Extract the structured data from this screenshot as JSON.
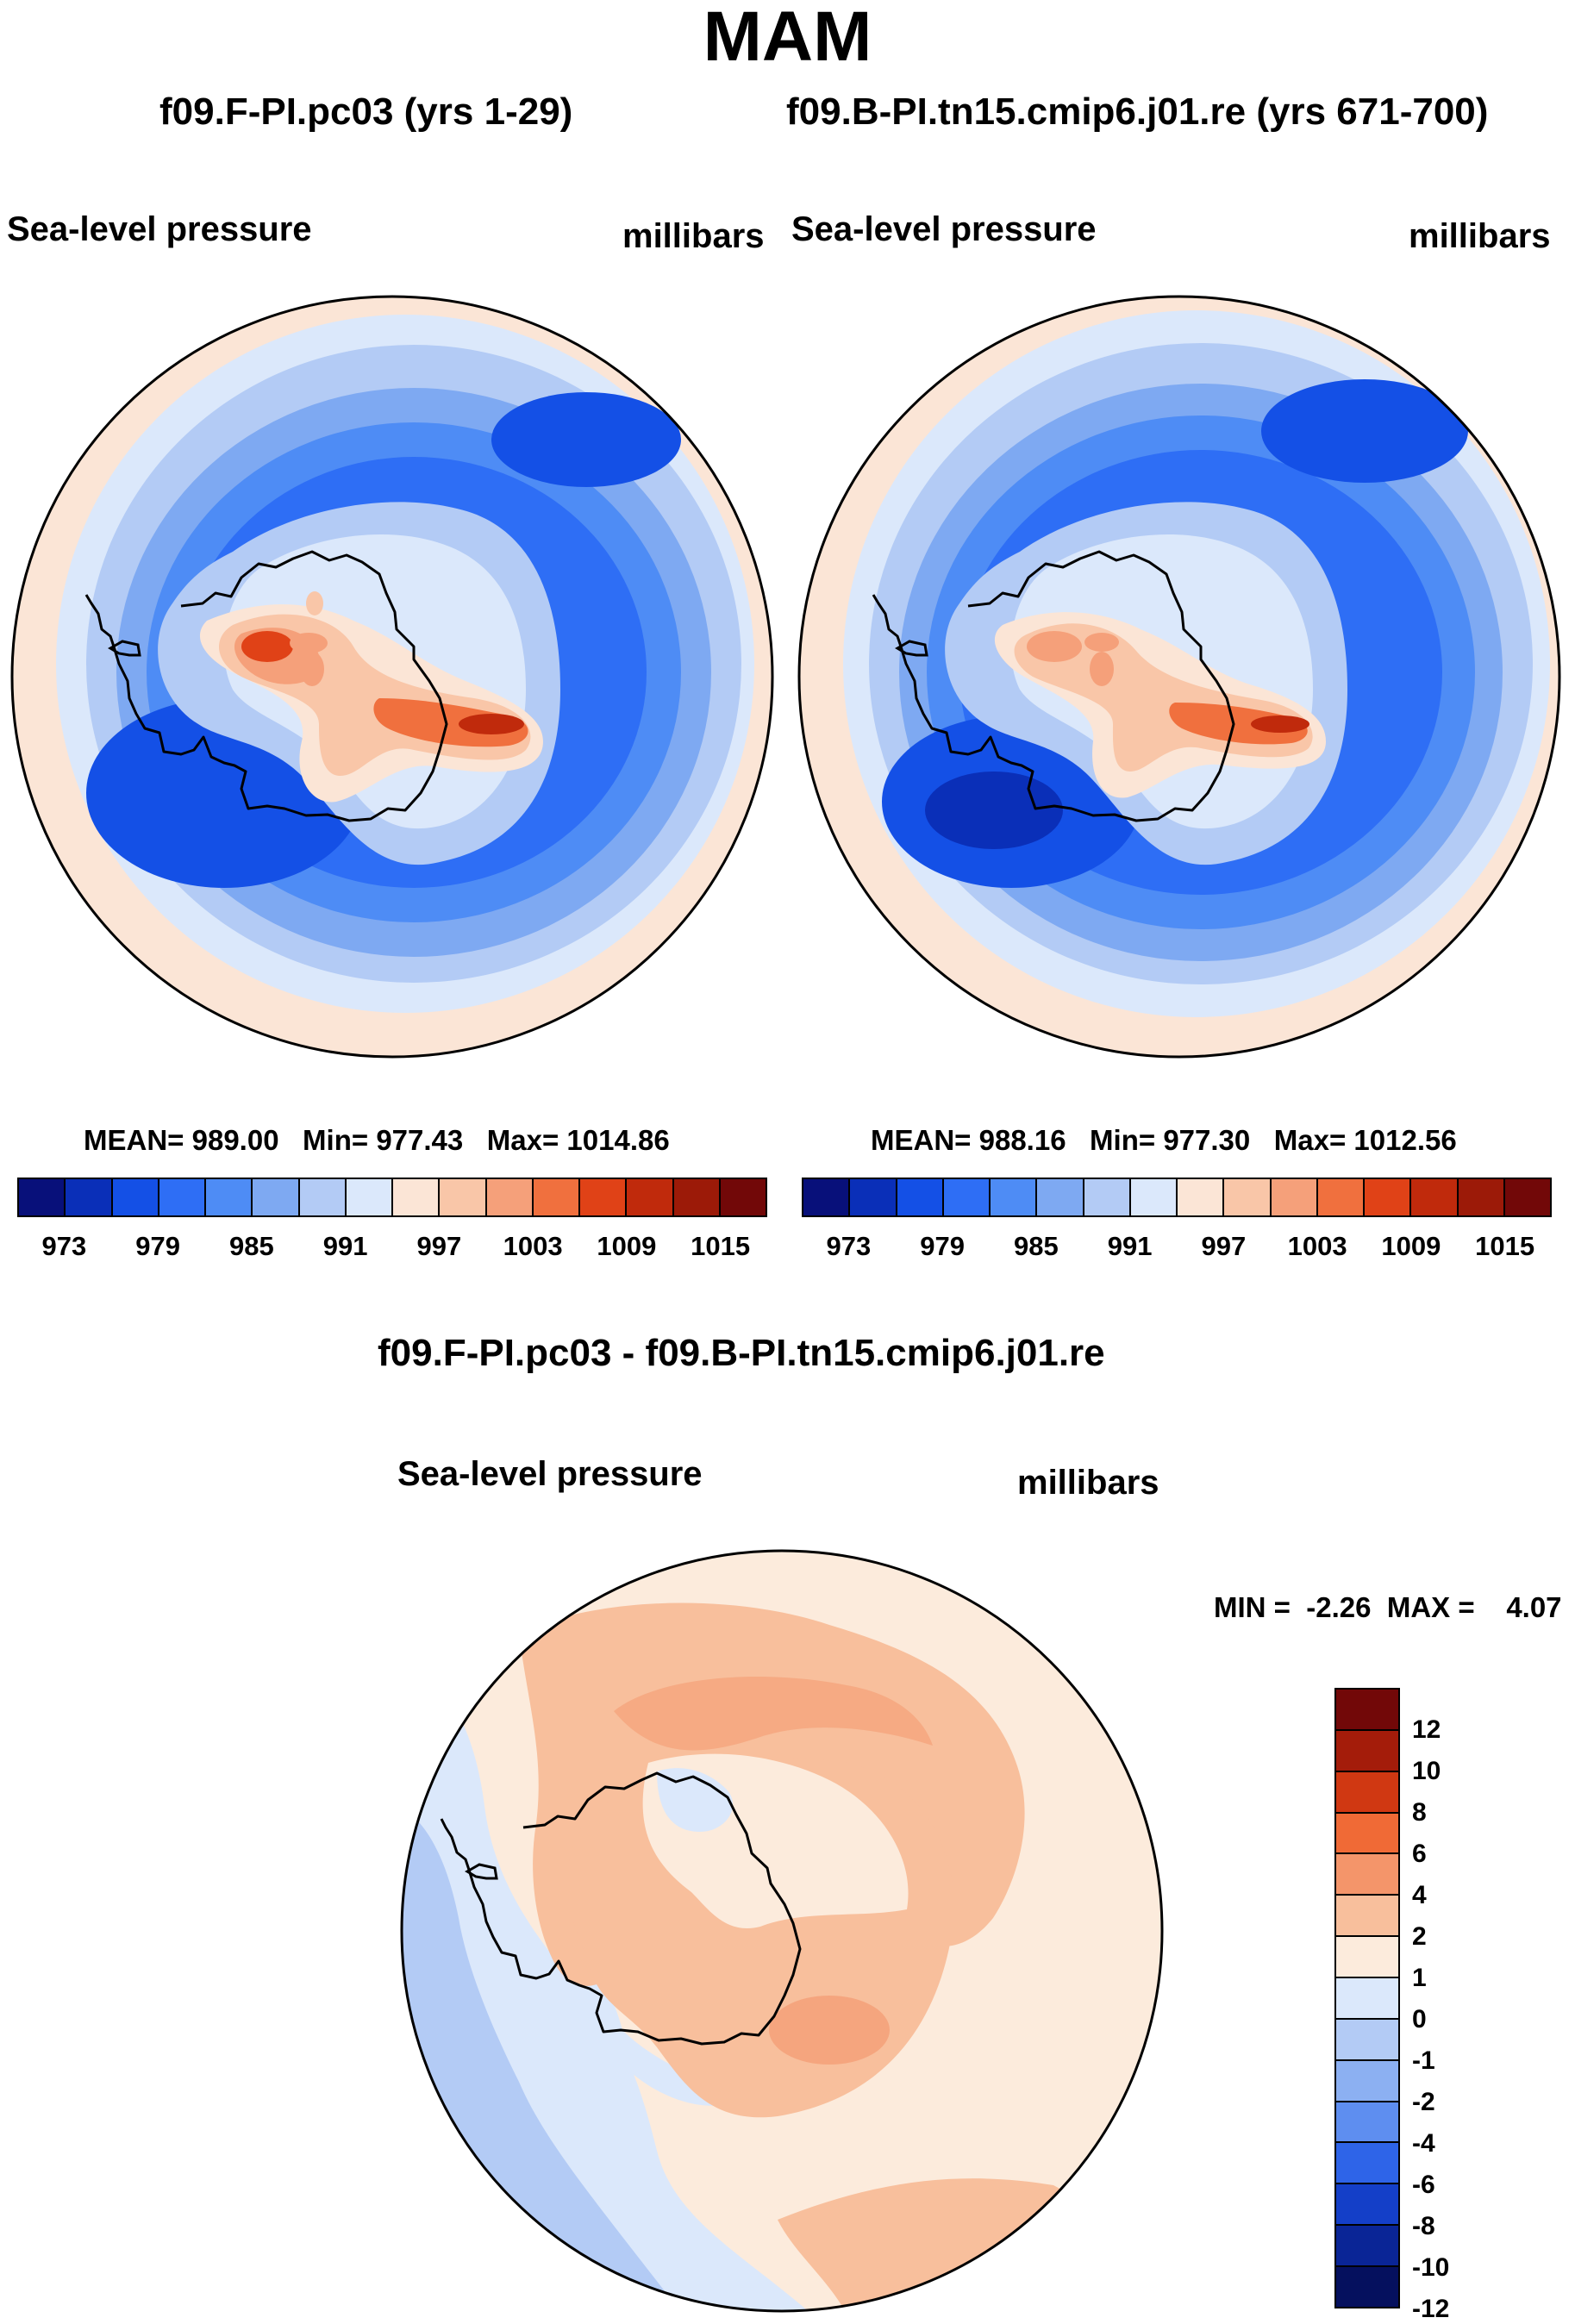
{
  "figure": {
    "title": "MAM"
  },
  "panels": [
    {
      "title": "f09.F-PI.pc03 (yrs 1-29)",
      "variable": "Sea-level pressure",
      "units": "millibars",
      "stats": {
        "mean": "989.00",
        "min": "977.43",
        "max": "1014.86"
      }
    },
    {
      "title": "f09.B-PI.tn15.cmip6.j01.re (yrs 671-700)",
      "variable": "Sea-level pressure",
      "units": "millibars",
      "stats": {
        "mean": "988.16",
        "min": "977.30",
        "max": "1012.56"
      }
    }
  ],
  "shared_colorbar": {
    "colors": [
      "#08107a",
      "#0a2fb8",
      "#1450e6",
      "#2e6ef5",
      "#4e8cf5",
      "#7ea9f2",
      "#b3cbf5",
      "#dbe8fb",
      "#fbe5d6",
      "#f9c6a8",
      "#f5a07a",
      "#f0703e",
      "#e04217",
      "#c02a0c",
      "#9c1a08",
      "#720808"
    ],
    "tick_labels": [
      "973",
      "979",
      "985",
      "991",
      "997",
      "1003",
      "1009",
      "1015"
    ]
  },
  "difference": {
    "title": "f09.F-PI.pc03 - f09.B-PI.tn15.cmip6.j01.re",
    "variable": "Sea-level pressure",
    "units": "millibars",
    "min_label": "MIN =",
    "min_value": "-2.26",
    "max_label": "MAX =",
    "max_value": "4.07",
    "colorbar": {
      "colors_top_to_bottom": [
        "#720808",
        "#a41c0a",
        "#d03812",
        "#f06a36",
        "#f4956a",
        "#f8bf9c",
        "#fcebdc",
        "#dbe8fb",
        "#b3cbf5",
        "#8cb0f2",
        "#5e8ef0",
        "#2e64e8",
        "#143fc8",
        "#0a2596",
        "#05105e"
      ],
      "tick_labels": [
        "12",
        "10",
        "8",
        "6",
        "4",
        "2",
        "1",
        "0",
        "-1",
        "-2",
        "-4",
        "-6",
        "-8",
        "-10",
        "-12"
      ]
    }
  },
  "chart_data": [
    {
      "type": "heatmap",
      "projection": "south polar stereographic",
      "title": "f09.F-PI.pc03 (yrs 1-29)",
      "variable": "Sea-level pressure",
      "units": "millibars",
      "mean": 989.0,
      "min": 977.43,
      "max": 1014.86,
      "contour_levels": [
        973,
        976,
        979,
        982,
        985,
        988,
        991,
        994,
        997,
        1000,
        1003,
        1006,
        1009,
        1012,
        1015
      ]
    },
    {
      "type": "heatmap",
      "projection": "south polar stereographic",
      "title": "f09.B-PI.tn15.cmip6.j01.re (yrs 671-700)",
      "variable": "Sea-level pressure",
      "units": "millibars",
      "mean": 988.16,
      "min": 977.3,
      "max": 1012.56,
      "contour_levels": [
        973,
        976,
        979,
        982,
        985,
        988,
        991,
        994,
        997,
        1000,
        1003,
        1006,
        1009,
        1012,
        1015
      ]
    },
    {
      "type": "heatmap",
      "projection": "south polar stereographic",
      "title": "f09.F-PI.pc03 - f09.B-PI.tn15.cmip6.j01.re",
      "variable": "Sea-level pressure",
      "units": "millibars",
      "min": -2.26,
      "max": 4.07,
      "contour_levels": [
        -12,
        -10,
        -8,
        -6,
        -4,
        -2,
        -1,
        0,
        1,
        2,
        4,
        6,
        8,
        10,
        12
      ]
    }
  ]
}
